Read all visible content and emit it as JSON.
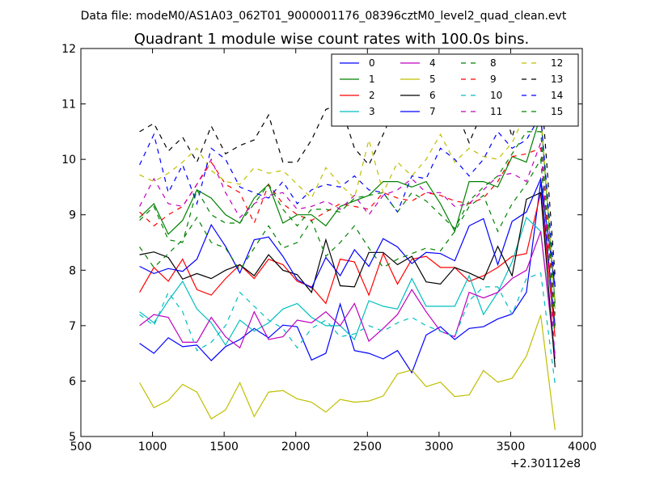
{
  "header": {
    "suptitle": "Data file: modeM0/AS1A03_062T01_9000001176_08396cztM0_level2_quad_clean.evt"
  },
  "chart_data": {
    "type": "line",
    "title": "Quadrant 1 module wise count rates with 100.0s bins.",
    "xlabel": "",
    "ylabel": "",
    "x_offset_label": "+2.30112e8",
    "xlim": [
      500,
      4000
    ],
    "ylim": [
      5,
      12
    ],
    "xticks": [
      500,
      1000,
      1500,
      2000,
      2500,
      3000,
      3500,
      4000
    ],
    "yticks": [
      5,
      6,
      7,
      8,
      9,
      10,
      11,
      12
    ],
    "grid": false,
    "legend": {
      "placement": "top-right",
      "columns": 4
    },
    "x": [
      910,
      1010,
      1110,
      1210,
      1310,
      1410,
      1510,
      1610,
      1710,
      1810,
      1910,
      2010,
      2110,
      2210,
      2310,
      2410,
      2510,
      2610,
      2710,
      2810,
      2910,
      3010,
      3110,
      3210,
      3310,
      3410,
      3510,
      3610,
      3710,
      3810
    ],
    "series": [
      {
        "name": "0",
        "color": "#0000ff",
        "dash": "solid",
        "values": [
          6.68,
          6.5,
          6.78,
          6.62,
          6.65,
          6.37,
          6.62,
          6.75,
          6.95,
          6.78,
          7.01,
          6.98,
          6.38,
          6.5,
          7.39,
          6.55,
          6.5,
          6.4,
          6.55,
          6.15,
          6.83,
          6.98,
          6.75,
          6.95,
          6.98,
          7.12,
          7.21,
          7.6,
          9.6,
          7.0
        ]
      },
      {
        "name": "1",
        "color": "#008000",
        "dash": "solid",
        "values": [
          8.95,
          9.2,
          8.65,
          8.9,
          9.45,
          9.3,
          9.0,
          8.85,
          9.3,
          9.55,
          8.85,
          9.0,
          9.0,
          8.8,
          9.15,
          9.25,
          9.35,
          9.6,
          9.6,
          9.5,
          9.6,
          9.2,
          8.7,
          9.6,
          9.6,
          9.5,
          10.05,
          9.95,
          10.8,
          7.4
        ]
      },
      {
        "name": "2",
        "color": "#ff0000",
        "dash": "solid",
        "values": [
          7.6,
          8.05,
          7.8,
          8.2,
          7.65,
          7.55,
          7.85,
          8.1,
          7.85,
          8.2,
          8.1,
          7.8,
          7.7,
          7.4,
          8.2,
          8.15,
          7.55,
          8.3,
          7.75,
          8.2,
          8.25,
          8.05,
          8.05,
          7.8,
          7.9,
          8.05,
          8.25,
          8.3,
          9.4,
          6.8
        ]
      },
      {
        "name": "3",
        "color": "#00bfbf",
        "dash": "solid",
        "values": [
          7.25,
          7.05,
          7.45,
          7.8,
          7.3,
          7.05,
          6.65,
          7.1,
          6.9,
          7.05,
          7.3,
          7.4,
          7.15,
          7.0,
          7.0,
          6.75,
          7.45,
          7.35,
          7.3,
          7.85,
          7.35,
          7.35,
          7.35,
          7.9,
          7.2,
          7.6,
          8.15,
          8.95,
          8.7,
          6.5
        ]
      },
      {
        "name": "4",
        "color": "#bf00bf",
        "dash": "solid",
        "values": [
          7.0,
          7.2,
          7.15,
          6.7,
          6.7,
          7.15,
          6.8,
          6.6,
          7.25,
          6.75,
          6.8,
          7.1,
          7.05,
          7.25,
          7.0,
          7.4,
          6.72,
          6.95,
          7.2,
          7.65,
          7.25,
          6.9,
          6.8,
          7.6,
          7.5,
          7.6,
          7.85,
          8.0,
          8.7,
          6.4
        ]
      },
      {
        "name": "5",
        "color": "#bfbf00",
        "dash": "solid",
        "values": [
          5.97,
          5.52,
          5.65,
          5.94,
          5.8,
          5.32,
          5.48,
          5.97,
          5.36,
          5.8,
          5.83,
          5.68,
          5.62,
          5.44,
          5.67,
          5.62,
          5.64,
          5.73,
          6.13,
          6.2,
          5.9,
          5.98,
          5.72,
          5.75,
          6.19,
          5.98,
          6.05,
          6.45,
          7.19,
          5.12
        ]
      },
      {
        "name": "6",
        "color": "#000000",
        "dash": "solid",
        "values": [
          8.28,
          8.33,
          8.23,
          7.84,
          7.94,
          7.85,
          8.0,
          8.1,
          7.9,
          8.28,
          8.0,
          7.92,
          7.6,
          8.55,
          7.72,
          7.7,
          8.32,
          8.32,
          8.1,
          8.25,
          7.79,
          7.75,
          8.05,
          7.95,
          7.83,
          8.43,
          7.9,
          9.28,
          9.4,
          6.25
        ]
      },
      {
        "name": "7",
        "color": "#0000ff",
        "dash": "solid",
        "values": [
          8.07,
          7.94,
          8.03,
          7.98,
          8.2,
          8.82,
          8.43,
          7.95,
          8.55,
          8.6,
          8.25,
          7.83,
          7.68,
          8.23,
          7.9,
          8.37,
          8.07,
          8.57,
          8.42,
          8.12,
          8.32,
          8.3,
          8.17,
          8.8,
          8.93,
          8.1,
          8.88,
          9.05,
          9.65,
          7.7
        ]
      },
      {
        "name": "8",
        "color": "#008000",
        "dash": "dashed",
        "values": [
          8.42,
          8.05,
          8.3,
          8.55,
          8.95,
          8.5,
          8.4,
          8.0,
          8.4,
          8.8,
          8.4,
          8.5,
          8.9,
          8.25,
          8.5,
          8.8,
          8.4,
          8.05,
          8.2,
          8.3,
          8.4,
          8.35,
          8.7,
          9.15,
          9.35,
          8.7,
          9.2,
          9.55,
          10.0,
          6.9
        ]
      },
      {
        "name": "9",
        "color": "#ff0000",
        "dash": "dashed",
        "values": [
          9.05,
          8.8,
          9.0,
          9.15,
          9.55,
          9.95,
          9.55,
          9.4,
          8.85,
          9.55,
          9.2,
          9.0,
          8.9,
          9.05,
          9.2,
          9.15,
          9.1,
          9.4,
          9.3,
          9.25,
          9.4,
          9.35,
          9.25,
          9.2,
          9.3,
          9.6,
          10.05,
          10.1,
          10.2,
          7.1
        ]
      },
      {
        "name": "10",
        "color": "#00bfbf",
        "dash": "dashed",
        "values": [
          7.2,
          7.0,
          7.6,
          7.25,
          6.55,
          6.7,
          7.0,
          7.6,
          7.35,
          7.1,
          6.95,
          6.6,
          6.95,
          7.1,
          6.8,
          6.85,
          7.0,
          6.9,
          7.05,
          7.15,
          7.0,
          6.9,
          6.8,
          7.45,
          7.7,
          7.7,
          7.2,
          7.85,
          7.95,
          5.95
        ]
      },
      {
        "name": "11",
        "color": "#bf00bf",
        "dash": "dashed",
        "values": [
          9.15,
          9.65,
          9.2,
          9.15,
          9.55,
          10.0,
          9.4,
          8.95,
          9.2,
          9.35,
          9.4,
          9.1,
          9.15,
          9.25,
          9.1,
          9.35,
          9.0,
          9.35,
          9.45,
          9.65,
          9.4,
          9.4,
          9.15,
          9.2,
          9.45,
          9.7,
          9.75,
          9.6,
          10.3,
          6.4
        ]
      },
      {
        "name": "12",
        "color": "#bfbf00",
        "dash": "dashed",
        "values": [
          9.72,
          9.6,
          9.75,
          9.95,
          10.2,
          9.8,
          9.6,
          9.55,
          9.85,
          9.75,
          9.8,
          9.55,
          9.3,
          9.85,
          9.55,
          9.3,
          10.35,
          9.4,
          9.95,
          9.7,
          10.0,
          10.45,
          9.95,
          10.2,
          10.05,
          10.0,
          10.3,
          10.85,
          10.9,
          7.3
        ]
      },
      {
        "name": "13",
        "color": "#000000",
        "dash": "dashed",
        "values": [
          10.5,
          10.65,
          10.15,
          10.4,
          9.95,
          10.6,
          10.1,
          10.25,
          10.35,
          10.8,
          9.95,
          9.95,
          10.35,
          10.9,
          11.0,
          10.2,
          9.9,
          10.45,
          11.05,
          10.85,
          10.8,
          10.9,
          10.95,
          10.3,
          10.9,
          11.35,
          10.4,
          11.25,
          11.4,
          7.9
        ]
      },
      {
        "name": "14",
        "color": "#0000ff",
        "dash": "dashed",
        "values": [
          9.9,
          10.45,
          9.4,
          9.9,
          9.2,
          10.2,
          10.0,
          9.5,
          9.4,
          9.3,
          9.6,
          9.2,
          9.45,
          9.55,
          9.5,
          9.7,
          9.45,
          9.4,
          9.05,
          9.7,
          9.65,
          10.2,
          10.0,
          9.7,
          10.0,
          10.5,
          10.2,
          10.35,
          10.8,
          7.7
        ]
      },
      {
        "name": "15",
        "color": "#008000",
        "dash": "dashed",
        "values": [
          8.9,
          9.15,
          8.55,
          8.5,
          9.45,
          9.0,
          8.85,
          8.85,
          9.2,
          9.55,
          9.1,
          8.8,
          9.1,
          9.1,
          9.05,
          9.3,
          9.35,
          9.4,
          9.05,
          9.4,
          9.25,
          9.0,
          8.75,
          9.25,
          9.5,
          9.7,
          10.1,
          10.5,
          10.5,
          7.2
        ]
      }
    ]
  }
}
